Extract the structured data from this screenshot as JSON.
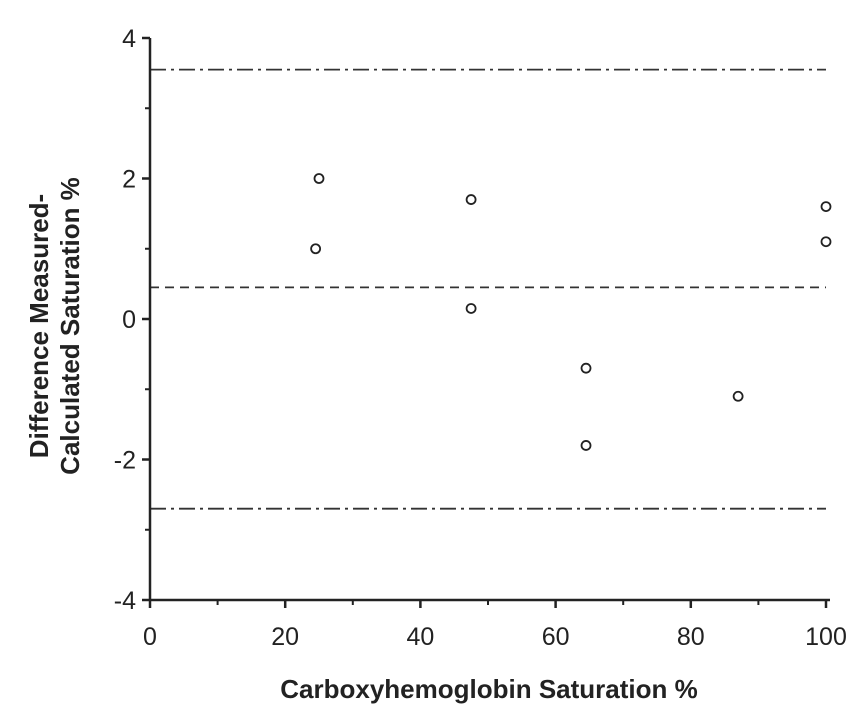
{
  "chart_data": {
    "type": "scatter",
    "xlabel": "Carboxyhemoglobin Saturation %",
    "ylabel_lines": [
      "Difference Measured-",
      "Calculated Saturation %"
    ],
    "xlim": [
      0,
      100
    ],
    "ylim": [
      -4,
      4
    ],
    "x_ticks": [
      0,
      20,
      40,
      60,
      80,
      100
    ],
    "x_tick_labels": [
      "0",
      "20",
      "40",
      "60",
      "80",
      "100"
    ],
    "x_minor_ticks": [
      10,
      30,
      50,
      70,
      90
    ],
    "y_ticks": [
      -4,
      -2,
      0,
      2,
      4
    ],
    "y_tick_labels": [
      "-4",
      "-2",
      "0",
      "2",
      "4"
    ],
    "y_minor_ticks": [
      -3,
      -1,
      1,
      3
    ],
    "grid": false,
    "points": [
      {
        "x": 25,
        "y": 2.0
      },
      {
        "x": 24.5,
        "y": 1.0
      },
      {
        "x": 47.5,
        "y": 1.7
      },
      {
        "x": 47.5,
        "y": 0.15
      },
      {
        "x": 64.5,
        "y": -0.7
      },
      {
        "x": 64.5,
        "y": -1.8
      },
      {
        "x": 87,
        "y": -1.1
      },
      {
        "x": 100,
        "y": 1.6
      },
      {
        "x": 100,
        "y": 1.1
      }
    ],
    "reference_lines": [
      {
        "role": "upper-limit",
        "y": 3.55,
        "style": "dash-dot"
      },
      {
        "role": "mean",
        "y": 0.45,
        "style": "dashed"
      },
      {
        "role": "lower-limit",
        "y": -2.7,
        "style": "dash-dot"
      }
    ]
  }
}
